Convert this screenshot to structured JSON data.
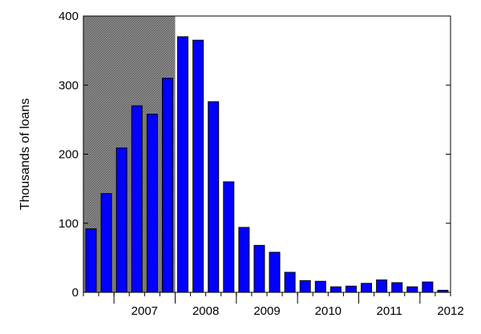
{
  "chart_data": {
    "type": "bar",
    "title": "",
    "xlabel": "",
    "ylabel": "Thousands of loans",
    "ylim": [
      0,
      400
    ],
    "yticks": [
      0,
      100,
      200,
      300,
      400
    ],
    "year_labels": [
      "2007",
      "2008",
      "2009",
      "2010",
      "2011",
      "2012"
    ],
    "x_start": "2006Q3",
    "values": [
      92,
      143,
      209,
      270,
      258,
      310,
      370,
      365,
      276,
      160,
      94,
      68,
      58,
      29,
      17,
      16,
      8,
      9,
      13,
      18,
      14,
      8,
      15,
      3
    ],
    "bar_color": "#0000ff",
    "shaded_region": {
      "from_bar_index": 0,
      "to_bar_index": 5,
      "color": "#8c8c8c"
    },
    "grid": false,
    "legend": "none"
  }
}
